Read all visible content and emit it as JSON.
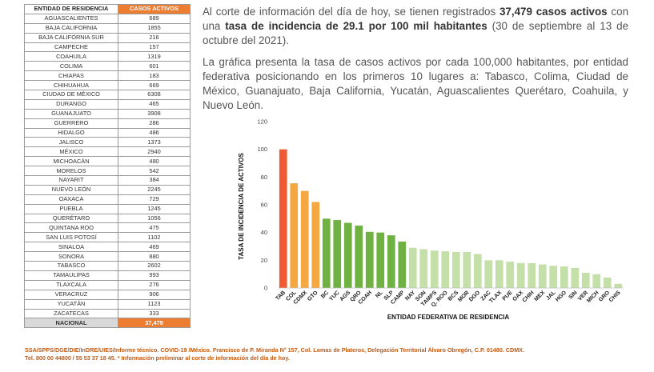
{
  "table": {
    "headers": {
      "state": "ENTIDAD DE RESIDENCIA",
      "cases": "CASOS ACTIVOS"
    },
    "rows": [
      [
        "AGUASCALIENTES",
        "689"
      ],
      [
        "BAJA CALIFORNIA",
        "1855"
      ],
      [
        "BAJA CALIFORNIA SUR",
        "216"
      ],
      [
        "CAMPECHE",
        "157"
      ],
      [
        "COAHUILA",
        "1319"
      ],
      [
        "COLIMA",
        "601"
      ],
      [
        "CHIAPAS",
        "183"
      ],
      [
        "CHIHUAHUA",
        "669"
      ],
      [
        "CIUDAD DE MÉXICO",
        "6308"
      ],
      [
        "DURANGO",
        "465"
      ],
      [
        "GUANAJUATO",
        "3908"
      ],
      [
        "GUERRERO",
        "286"
      ],
      [
        "HIDALGO",
        "486"
      ],
      [
        "JALISCO",
        "1373"
      ],
      [
        "MÉXICO",
        "2940"
      ],
      [
        "MICHOACÁN",
        "480"
      ],
      [
        "MORELOS",
        "542"
      ],
      [
        "NAYARIT",
        "384"
      ],
      [
        "NUEVO LEÓN",
        "2245"
      ],
      [
        "OAXACA",
        "729"
      ],
      [
        "PUEBLA",
        "1245"
      ],
      [
        "QUERÉTARO",
        "1056"
      ],
      [
        "QUINTANA ROO",
        "475"
      ],
      [
        "SAN LUIS POTOSÍ",
        "1102"
      ],
      [
        "SINALOA",
        "469"
      ],
      [
        "SONORA",
        "880"
      ],
      [
        "TABASCO",
        "2602"
      ],
      [
        "TAMAULIPAS",
        "993"
      ],
      [
        "TLAXCALA",
        "276"
      ],
      [
        "VERACRUZ",
        "906"
      ],
      [
        "YUCATÁN",
        "1123"
      ],
      [
        "ZACATECAS",
        "333"
      ]
    ],
    "total": {
      "state": "NACIONAL",
      "cases": "37,479"
    }
  },
  "text": {
    "p1_a": "Al corte de información del día de hoy, se tienen registrados ",
    "p1_b": "37,479 casos activos",
    "p1_c": " con una ",
    "p1_d": "tasa de incidencia de 29.1 por 100 mil habitantes",
    "p1_e": " (30 de septiembre al 13 de octubre del 2021).",
    "p2": "La gráfica presenta la tasa de casos activos por cada 100,000 habitantes, por entidad federativa posicionando en los primeros 10 lugares a: Tabasco, Colima, Ciudad de México, Guanajuato, Baja California, Yucatán, Aguascalientes Querétaro, Coahuila, y Nuevo León."
  },
  "footer": {
    "line1": "SSA/SPPS/DGE/DIE/InDRE/UIES/Informe técnico. COVID-19 /México. Francisco de P. Miranda N° 157, Col. Lomas de Plateros, Delegación Territorial Álvaro Obregón, C.P. 01480. CDMX.",
    "line2": "Tel. 800 00 44800 / 55 53 37 18 45. * Información preliminar al corte de información del día de hoy."
  },
  "chart_data": {
    "type": "bar",
    "xlabel": "ENTIDAD FEDERATIVA DE RESIDENCIA",
    "ylabel": "TASA DE INCIDENCIA DE ACTIVOS",
    "ylim": [
      0,
      120
    ],
    "yticks": [
      0,
      20,
      40,
      60,
      80,
      100,
      120
    ],
    "grid": false,
    "categories": [
      "TAB",
      "COL",
      "CDMX",
      "GTO",
      "BC",
      "YUC",
      "AGS",
      "QRO",
      "COAH",
      "NL",
      "SLP",
      "CAMP",
      "NAY",
      "SON",
      "TAMPS",
      "Q. ROO",
      "BCS",
      "MOR",
      "DGO",
      "ZAC",
      "TLAX",
      "PUE",
      "OAX",
      "CHIH",
      "MEX",
      "JAL",
      "HGO",
      "SIN",
      "VER",
      "MICH",
      "GRO",
      "CHIS"
    ],
    "values": [
      100,
      75.5,
      70,
      62,
      50,
      49,
      47,
      45,
      40.5,
      40,
      38,
      33.5,
      29,
      28,
      27,
      26.5,
      26,
      26,
      24.5,
      20,
      20,
      19,
      18,
      18,
      17,
      16,
      15.5,
      14.5,
      11,
      10,
      7.5,
      3
    ],
    "colors": {
      "top1": "#f05a32",
      "top2_4": "#f5a742",
      "top5_12": "#70b144",
      "rest": "#c5dfa9"
    }
  }
}
